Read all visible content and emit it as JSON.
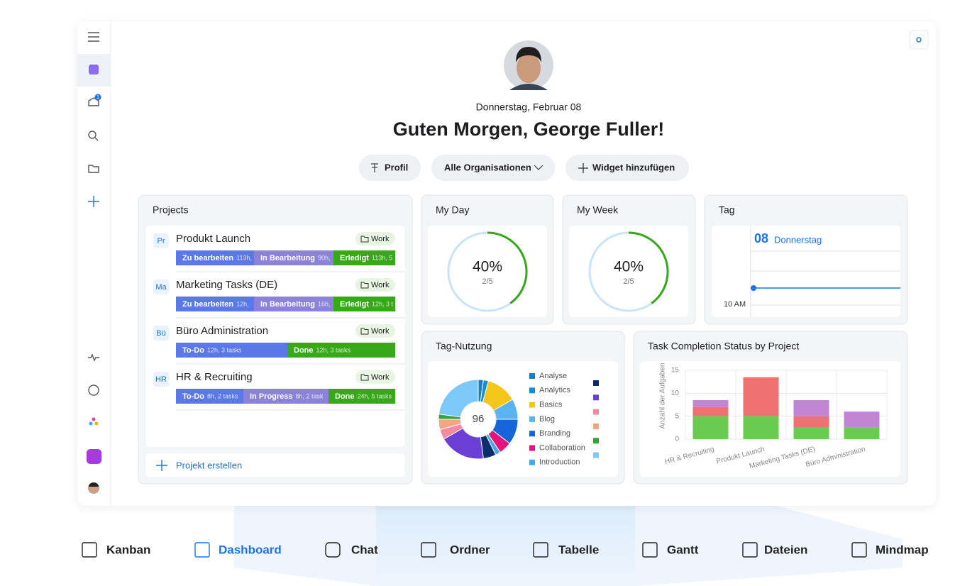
{
  "sidebar": {
    "badge": "1"
  },
  "header": {
    "date": "Donnerstag, Februar 08",
    "greeting": "Guten Morgen, George Fuller!",
    "buttons": [
      "Profil",
      "Alle Organisationen",
      "Widget hinzufügen"
    ]
  },
  "projects": {
    "title": "Projects",
    "items": [
      {
        "initials": "Pr",
        "name": "Produkt Launch",
        "tag": "Work",
        "segments": [
          {
            "label": "Zu bearbeiten",
            "detail": "113h,"
          },
          {
            "label": "In Bearbeitung",
            "detail": "90h,"
          },
          {
            "label": "Erledigt",
            "detail": "113h, 5"
          }
        ]
      },
      {
        "initials": "Ma",
        "name": "Marketing Tasks (DE)",
        "tag": "Work",
        "segments": [
          {
            "label": "Zu bearbeiten",
            "detail": "12h,"
          },
          {
            "label": "In Bearbeitung",
            "detail": "16h,"
          },
          {
            "label": "Erledigt",
            "detail": "12h, 3 t"
          }
        ]
      },
      {
        "initials": "Bü",
        "name": "Büro Administration",
        "tag": "Work",
        "segments": [
          {
            "label": "To-Do",
            "detail": "12h, 3 tasks"
          },
          {
            "label": "Done",
            "detail": "12h, 3 tasks"
          }
        ]
      },
      {
        "initials": "HR",
        "name": "HR & Recruiting",
        "tag": "Work",
        "segments": [
          {
            "label": "To-Do",
            "detail": "8h, 2 tasks"
          },
          {
            "label": "In Progress",
            "detail": "8h, 2 task"
          },
          {
            "label": "Done",
            "detail": "24h, 5 tasks"
          }
        ]
      }
    ],
    "create": "Projekt erstellen"
  },
  "my_day": {
    "title": "My Day",
    "value": 40,
    "value_label": "40%",
    "count": "2/5"
  },
  "my_week": {
    "title": "My Week",
    "value": 40,
    "value_label": "40%",
    "count": "2/5"
  },
  "tag": {
    "title": "Tag",
    "day": "08",
    "weekday": "Donnerstag",
    "time": "10 AM"
  },
  "chart_data": [
    {
      "type": "pie",
      "title": "Tag-Nutzung",
      "center_label": "96",
      "categories": [
        "Analyse",
        "Analytics",
        "Basics",
        "Blog",
        "Branding",
        "Collaboration",
        "Introduction",
        null,
        null,
        null,
        null,
        null,
        null
      ],
      "values": [
        2,
        2,
        12,
        8,
        10,
        5,
        2,
        5,
        18,
        4,
        4,
        2,
        22
      ],
      "colors": [
        "#1a7fc1",
        "#168fd2",
        "#f5c518",
        "#5ab4f0",
        "#1565d8",
        "#e6147a",
        "#47a8e8",
        "#0b2d6b",
        "#6a3fd6",
        "#f48aa0",
        "#f4a582",
        "#3a9e3a",
        "#7cc8f8"
      ]
    },
    {
      "type": "bar",
      "stacked": true,
      "title": "Task Completion Status by Project",
      "ylabel": "Anzahl der Aufgaben",
      "categories": [
        "HR & Recruiting",
        "Produkt Launch",
        "Marketing Tasks (DE)",
        "Büro Administration"
      ],
      "series": [
        {
          "color": "#6acc4e",
          "values": [
            5,
            5,
            2.5,
            2.5
          ]
        },
        {
          "color": "#ef7070",
          "values": [
            2,
            8.5,
            2.5,
            0
          ]
        },
        {
          "color": "#c384d6",
          "values": [
            1.5,
            0,
            3.5,
            3.5
          ]
        }
      ],
      "ylim": [
        0,
        15
      ],
      "yticks": [
        0,
        5,
        10,
        15
      ],
      "grid": true
    }
  ],
  "tabs": [
    "Kanban",
    "Dashboard",
    "Chat",
    "Ordner",
    "Tabelle",
    "Gantt",
    "Dateien",
    "Mindmap"
  ]
}
